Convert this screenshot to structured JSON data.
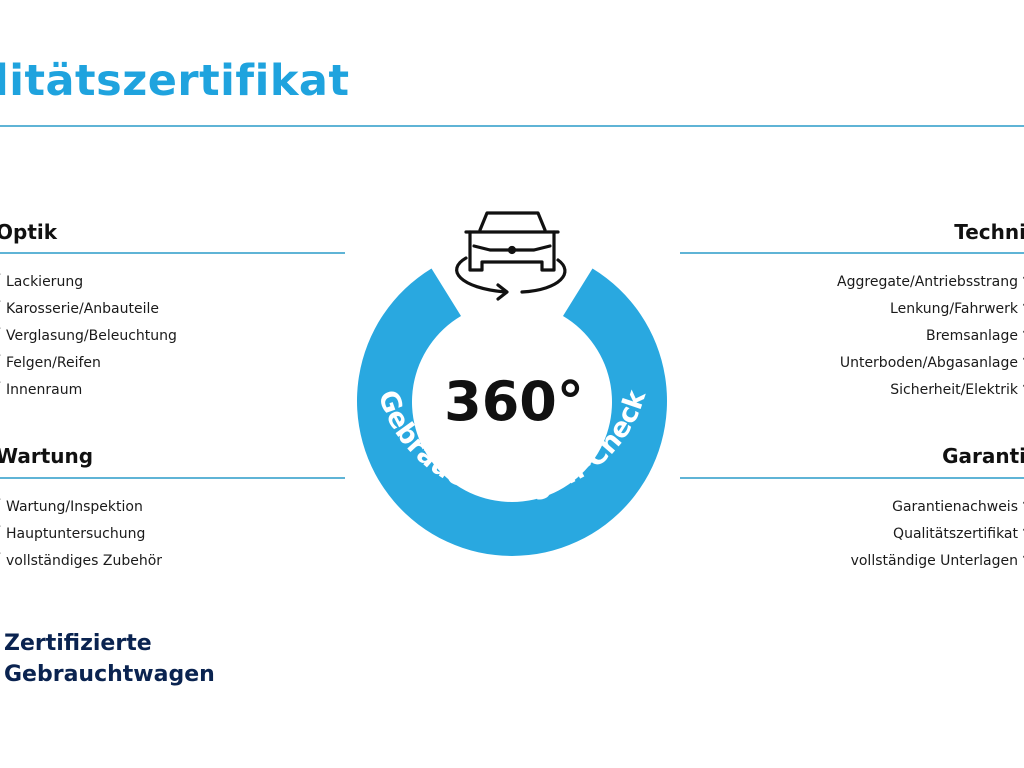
{
  "header": {
    "title": "litätszertifikat"
  },
  "colors": {
    "accent": "#1fa3de",
    "ring": "#29a8e0",
    "brand_navy": "#0a2350"
  },
  "badge": {
    "degrees": "360°",
    "arc_text": "Gebrauchtwagen-Check",
    "icon": "car-rotate-icon"
  },
  "left": [
    {
      "heading": "Optik",
      "items": [
        "Lackierung",
        "Karosserie/Anbauteile",
        "Verglasung/Beleuchtung",
        "Felgen/Reifen",
        "Innenraum"
      ]
    },
    {
      "heading": "Wartung",
      "items": [
        "Wartung/Inspektion",
        "Hauptuntersuchung",
        "vollständiges Zubehör"
      ]
    }
  ],
  "right": [
    {
      "heading": "Techni",
      "items": [
        "Aggregate/Antriebsstrang",
        "Lenkung/Fahrwerk",
        "Bremsanlage",
        "Unterboden/Abgasanlage",
        "Sicherheit/Elektrik"
      ]
    },
    {
      "heading": "Garanti",
      "items": [
        "Garantienachweis",
        "Qualitätszertifikat",
        "vollständige Unterlagen"
      ]
    }
  ],
  "footer": {
    "line1": "Zertifizierte",
    "line2": "Gebrauchtwagen"
  }
}
